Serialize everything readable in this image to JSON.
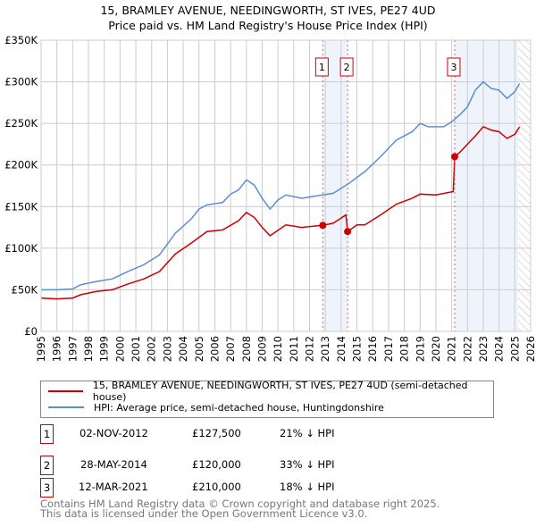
{
  "chart_data": {
    "type": "line",
    "title": "15, BRAMLEY AVENUE, NEEDINGWORTH, ST IVES, PE27 4UD",
    "subtitle": "Price paid vs. HM Land Registry's House Price Index (HPI)",
    "xlim": [
      1995,
      2026
    ],
    "ylim": [
      0,
      350000
    ],
    "y_ticks": [
      {
        "v": 0,
        "label": "£0"
      },
      {
        "v": 50000,
        "label": "£50K"
      },
      {
        "v": 100000,
        "label": "£100K"
      },
      {
        "v": 150000,
        "label": "£150K"
      },
      {
        "v": 200000,
        "label": "£200K"
      },
      {
        "v": 250000,
        "label": "£250K"
      },
      {
        "v": 300000,
        "label": "£300K"
      },
      {
        "v": 350000,
        "label": "£350K"
      }
    ],
    "x_ticks": [
      "1995",
      "1996",
      "1997",
      "1998",
      "1999",
      "2000",
      "2001",
      "2002",
      "2003",
      "2004",
      "2005",
      "2006",
      "2007",
      "2008",
      "2009",
      "2010",
      "2011",
      "2012",
      "2013",
      "2014",
      "2015",
      "2016",
      "2017",
      "2018",
      "2019",
      "2020",
      "2021",
      "2022",
      "2023",
      "2024",
      "2025",
      "2026"
    ],
    "series": [
      {
        "name": "15, BRAMLEY AVENUE, NEEDINGWORTH, ST IVES, PE27 4UD (semi-detached house)",
        "color": "#cc0000",
        "x": [
          1995,
          1996,
          1997,
          1997.5,
          1998.5,
          1999.5,
          2000.5,
          2001.5,
          2002.5,
          2003.5,
          2004.5,
          2005.5,
          2006.5,
          2007.5,
          2008,
          2008.5,
          2009,
          2009.5,
          2010.5,
          2011.5,
          2012.5,
          2012.84,
          2013.5,
          2014.3,
          2014.41,
          2015,
          2015.5,
          2016.5,
          2017.5,
          2018.5,
          2019,
          2020,
          2021.1,
          2021.19,
          2021.5,
          2022.5,
          2023,
          2023.5,
          2024,
          2024.5,
          2025,
          2025.3
        ],
        "y": [
          40000,
          39000,
          40000,
          44000,
          48000,
          50000,
          57000,
          63000,
          72000,
          93000,
          106000,
          120000,
          122000,
          133000,
          143000,
          137000,
          125000,
          115000,
          128000,
          125000,
          127000,
          127500,
          130000,
          140000,
          120000,
          128000,
          128000,
          140000,
          153000,
          160000,
          165000,
          164000,
          168000,
          210000,
          215000,
          235000,
          246000,
          242000,
          240000,
          232000,
          237000,
          246000
        ]
      },
      {
        "name": "HPI: Average price, semi-detached house, Huntingdonshire",
        "color": "#5b8fd0",
        "x": [
          1995,
          1996,
          1997,
          1997.5,
          1998.5,
          1999.5,
          2000.5,
          2001.5,
          2002.5,
          2003.5,
          2004.5,
          2005,
          2005.5,
          2006.5,
          2007,
          2007.5,
          2008,
          2008.5,
          2009,
          2009.5,
          2010,
          2010.5,
          2011.5,
          2012.5,
          2013.5,
          2014.5,
          2015.5,
          2016.5,
          2017.5,
          2018.5,
          2019,
          2019.5,
          2020.5,
          2021,
          2021.5,
          2022,
          2022.5,
          2023,
          2023.5,
          2024,
          2024.5,
          2025,
          2025.3
        ],
        "y": [
          50000,
          50000,
          51000,
          56000,
          60000,
          63000,
          72000,
          80000,
          92000,
          118000,
          135000,
          147000,
          152000,
          155000,
          165000,
          170000,
          182000,
          176000,
          160000,
          147000,
          158000,
          164000,
          160000,
          163000,
          166000,
          178000,
          192000,
          210000,
          230000,
          240000,
          250000,
          246000,
          246000,
          252000,
          260000,
          270000,
          290000,
          300000,
          292000,
          290000,
          280000,
          288000,
          298000
        ]
      }
    ],
    "sales": [
      {
        "label": "1",
        "x": 2012.84,
        "y": 127500
      },
      {
        "label": "2",
        "x": 2014.41,
        "y": 120000
      },
      {
        "label": "3",
        "x": 2021.19,
        "y": 210000
      }
    ],
    "shaded": [
      [
        2012.84,
        2014.41
      ],
      [
        2021.19,
        2025.2
      ]
    ],
    "hatched_from": 2025.2
  },
  "legend": {
    "property": "15, BRAMLEY AVENUE, NEEDINGWORTH, ST IVES, PE27 4UD (semi-detached house)",
    "hpi": "HPI: Average price, semi-detached house, Huntingdonshire"
  },
  "transactions": [
    {
      "num": "1",
      "date": "02-NOV-2012",
      "price": "£127,500",
      "diff": "21% ↓ HPI"
    },
    {
      "num": "2",
      "date": "28-MAY-2014",
      "price": "£120,000",
      "diff": "33% ↓ HPI"
    },
    {
      "num": "3",
      "date": "12-MAR-2021",
      "price": "£210,000",
      "diff": "18% ↓ HPI"
    }
  ],
  "footer": [
    "Contains HM Land Registry data © Crown copyright and database right 2025.",
    "This data is licensed under the Open Government Licence v3.0."
  ]
}
